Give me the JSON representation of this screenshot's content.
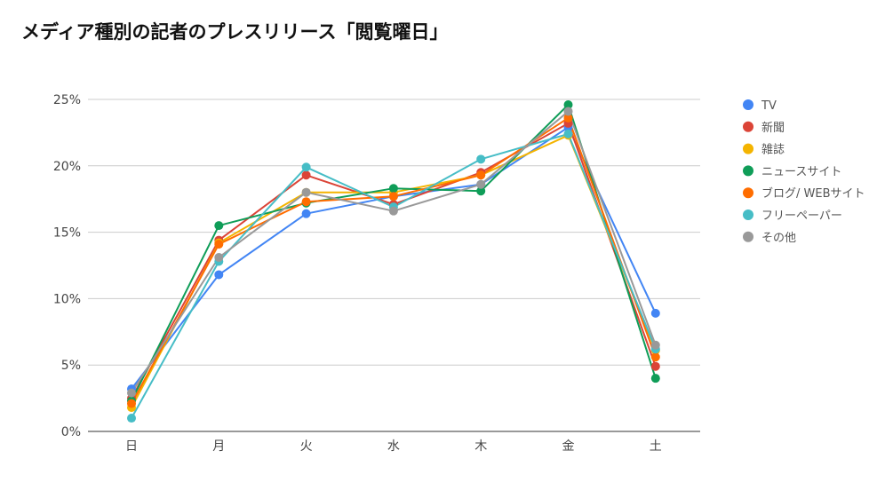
{
  "chart_data": {
    "type": "line",
    "title": "メディア種別の記者のプレスリリース「閲覧曜日」",
    "xlabel": "",
    "ylabel": "",
    "categories": [
      "日",
      "月",
      "火",
      "水",
      "木",
      "金",
      "土"
    ],
    "ylim": [
      0,
      25
    ],
    "yticks": [
      0,
      5,
      10,
      15,
      20,
      25
    ],
    "ytick_labels": [
      "0%",
      "5%",
      "10%",
      "15%",
      "20%",
      "25%"
    ],
    "grid": true,
    "legend_position": "right",
    "series": [
      {
        "name": "TV",
        "color": "#4285f4",
        "values": [
          3.2,
          11.8,
          16.4,
          17.7,
          18.6,
          22.9,
          8.9
        ]
      },
      {
        "name": "新聞",
        "color": "#db4437",
        "values": [
          2.5,
          14.4,
          19.3,
          17.1,
          19.5,
          23.2,
          4.9
        ]
      },
      {
        "name": "雑誌",
        "color": "#f4b400",
        "values": [
          1.8,
          14.2,
          18.0,
          18.0,
          19.3,
          22.3,
          6.1
        ]
      },
      {
        "name": "ニュースサイト",
        "color": "#0f9d58",
        "values": [
          2.3,
          15.5,
          17.2,
          18.3,
          18.1,
          24.6,
          4.0
        ]
      },
      {
        "name": "ブログ/ WEBサイト",
        "color": "#ff6d00",
        "values": [
          2.1,
          14.1,
          17.3,
          17.7,
          19.3,
          23.6,
          5.6
        ]
      },
      {
        "name": "フリーペーパー",
        "color": "#46bdc6",
        "values": [
          1.0,
          12.8,
          19.9,
          16.9,
          20.5,
          22.4,
          6.2
        ]
      },
      {
        "name": "その他",
        "color": "#999999",
        "values": [
          2.9,
          13.1,
          18.0,
          16.6,
          18.6,
          24.1,
          6.5
        ]
      }
    ]
  }
}
